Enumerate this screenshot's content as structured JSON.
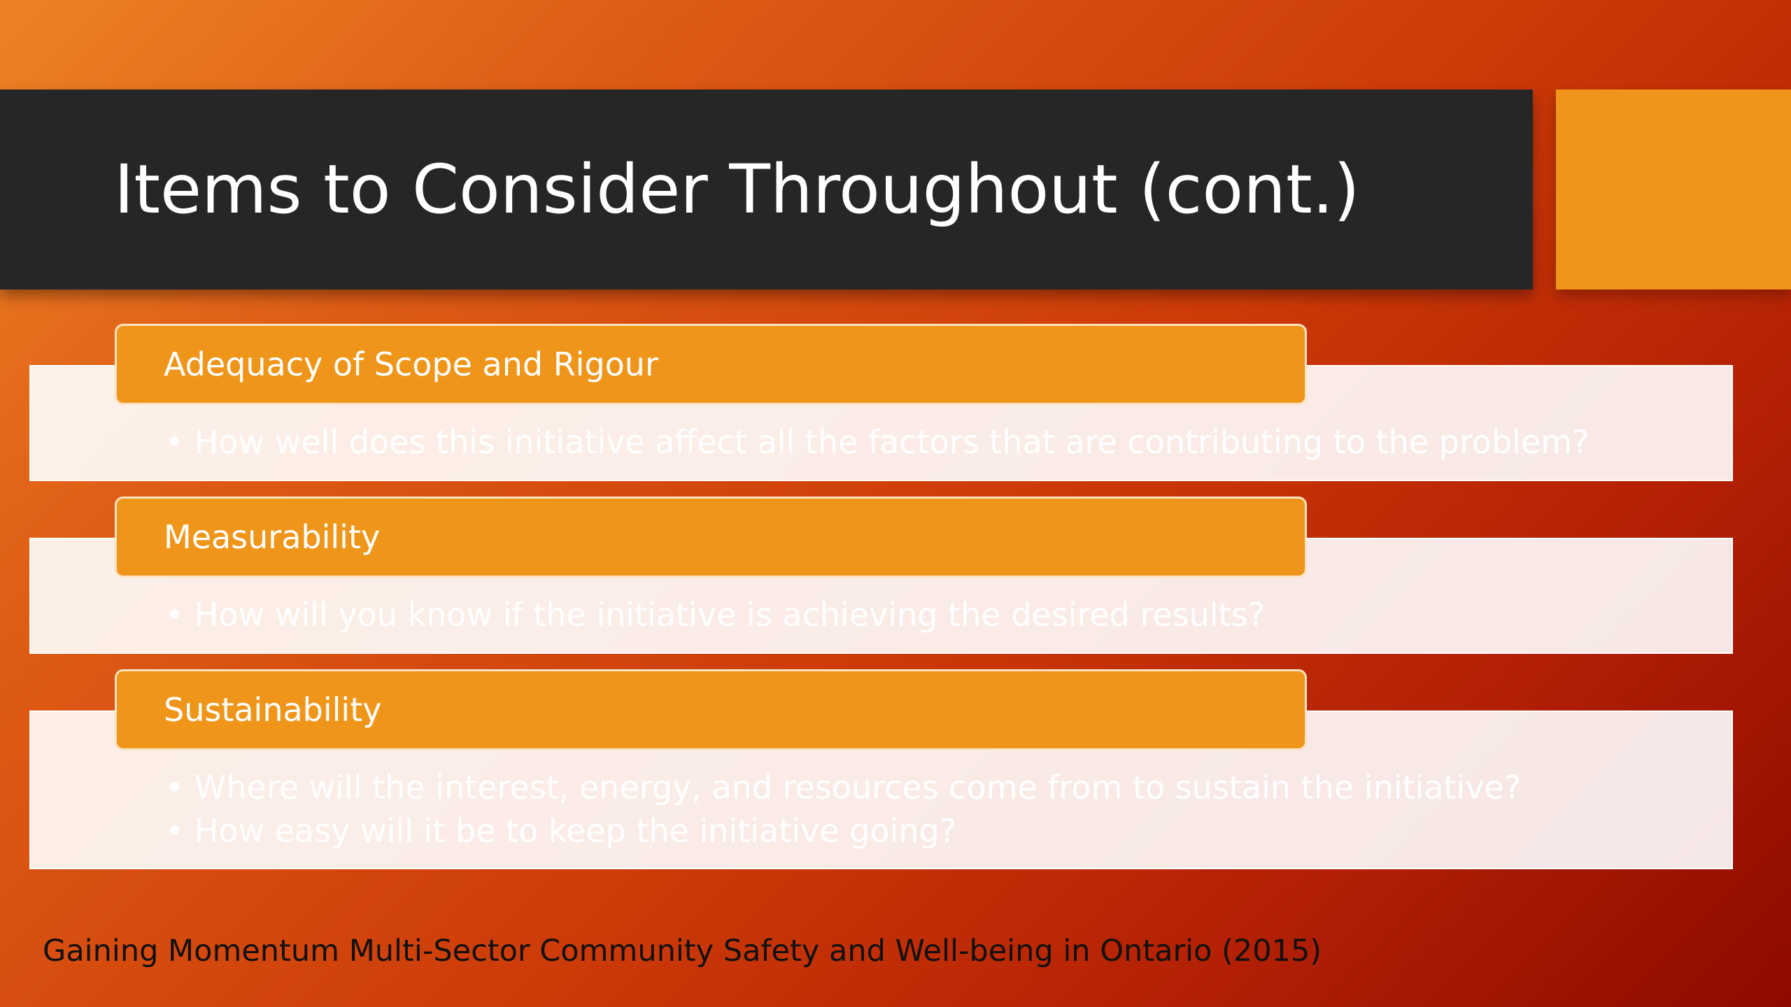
{
  "slide": {
    "title": "Items to Consider Throughout (cont.)",
    "sections": [
      {
        "heading": "Adequacy of Scope and Rigour",
        "bullets": [
          "• How well does this initiative affect all the factors that are contributing to the problem?"
        ]
      },
      {
        "heading": "Measurability",
        "bullets": [
          "• How will you know if the initiative is achieving the desired results?"
        ]
      },
      {
        "heading": "Sustainability",
        "bullets": [
          "• Where will the interest, energy, and resources come from to sustain the initiative?",
          "• How easy will it be to keep the initiative going?"
        ]
      }
    ],
    "footer": "Gaining Momentum Multi-Sector Community Safety and Well-being in Ontario (2015)"
  },
  "colors": {
    "title_bar": "#262626",
    "accent": "#ef951c",
    "background_start": "#ec8225",
    "background_end": "#8e0a00"
  }
}
